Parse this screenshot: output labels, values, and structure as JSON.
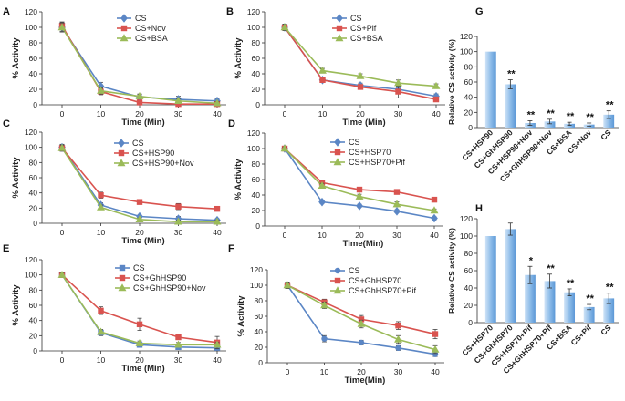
{
  "figure": {
    "description": "Citrate synthase (CS) thermal aggregation / activity assays"
  },
  "chart_data": [
    {
      "panel": "A",
      "type": "line",
      "xlabel": "Time (Min)",
      "ylabel": "% Activity",
      "x": [
        0,
        10,
        20,
        30,
        40
      ],
      "xticks": [
        "0",
        "10",
        "20",
        "30",
        "40"
      ],
      "ylim": [
        0,
        120
      ],
      "yticks": [
        "0",
        "20",
        "40",
        "60",
        "80",
        "100",
        "120"
      ],
      "series": [
        {
          "name": "CS",
          "color": "#5b86c5",
          "marker": "diamond",
          "values": [
            100,
            24,
            10,
            7,
            5
          ],
          "errors": [
            6,
            5,
            3,
            4,
            3
          ]
        },
        {
          "name": "CS+Nov",
          "color": "#d9534f",
          "marker": "square",
          "values": [
            102,
            17,
            3,
            1,
            1
          ],
          "errors": [
            5,
            4,
            2,
            2,
            1
          ]
        },
        {
          "name": "CS+BSA",
          "color": "#9bbb59",
          "marker": "triangle",
          "values": [
            100,
            18,
            11,
            5,
            2
          ],
          "errors": [
            5,
            4,
            3,
            3,
            2
          ]
        }
      ]
    },
    {
      "panel": "B",
      "type": "line",
      "xlabel": "Time (Min)",
      "ylabel": "% Activity",
      "x": [
        0,
        10,
        20,
        30,
        40
      ],
      "xticks": [
        "0",
        "10",
        "20",
        "30",
        "40"
      ],
      "ylim": [
        0,
        120
      ],
      "yticks": [
        "0",
        "20",
        "40",
        "60",
        "80",
        "100",
        "120"
      ],
      "series": [
        {
          "name": "CS",
          "color": "#5b86c5",
          "marker": "diamond",
          "values": [
            100,
            32,
            25,
            20,
            11
          ],
          "errors": [
            4,
            3,
            3,
            4,
            3
          ]
        },
        {
          "name": "CS+Pif",
          "color": "#d9534f",
          "marker": "square",
          "values": [
            100,
            32,
            23,
            17,
            7
          ],
          "errors": [
            4,
            3,
            3,
            8,
            3
          ]
        },
        {
          "name": "CS+BSA",
          "color": "#9bbb59",
          "marker": "triangle",
          "values": [
            100,
            44,
            37,
            28,
            24
          ],
          "errors": [
            4,
            3,
            3,
            4,
            3
          ]
        }
      ]
    },
    {
      "panel": "C",
      "type": "line",
      "xlabel": "Time (Min)",
      "ylabel": "% Activity",
      "x": [
        0,
        10,
        20,
        30,
        40
      ],
      "xticks": [
        "0",
        "10",
        "20",
        "30",
        "40"
      ],
      "ylim": [
        0,
        120
      ],
      "yticks": [
        "0",
        "20",
        "40",
        "60",
        "80",
        "100",
        "120"
      ],
      "series": [
        {
          "name": "CS",
          "color": "#5b86c5",
          "marker": "diamond",
          "values": [
            100,
            24,
            9,
            6,
            4
          ],
          "errors": [
            4,
            3,
            2,
            3,
            2
          ]
        },
        {
          "name": "CS+HSP90",
          "color": "#d9534f",
          "marker": "square",
          "values": [
            99,
            37,
            28,
            22,
            19
          ],
          "errors": [
            4,
            4,
            3,
            4,
            3
          ]
        },
        {
          "name": "CS+HSP90+Nov",
          "color": "#9bbb59",
          "marker": "triangle",
          "values": [
            99,
            21,
            5,
            2,
            2
          ],
          "errors": [
            4,
            3,
            2,
            2,
            2
          ]
        }
      ]
    },
    {
      "panel": "D",
      "type": "line",
      "xlabel": "Time(Min)",
      "ylabel": "% Activity",
      "x": [
        0,
        10,
        20,
        30,
        40
      ],
      "xticks": [
        "0",
        "10",
        "20",
        "30",
        "40"
      ],
      "ylim": [
        0,
        120
      ],
      "yticks": [
        "0",
        "20",
        "40",
        "60",
        "80",
        "100",
        "120"
      ],
      "series": [
        {
          "name": "CS",
          "color": "#5b86c5",
          "marker": "diamond",
          "values": [
            100,
            31,
            26,
            19,
            10
          ],
          "errors": [
            2,
            2,
            2,
            2,
            2
          ]
        },
        {
          "name": "CS+HSP70",
          "color": "#d9534f",
          "marker": "square",
          "values": [
            100,
            56,
            47,
            44,
            34
          ],
          "errors": [
            2,
            3,
            3,
            3,
            3
          ]
        },
        {
          "name": "CS+HSP70+Pif",
          "color": "#9bbb59",
          "marker": "triangle",
          "values": [
            100,
            52,
            38,
            28,
            20
          ],
          "errors": [
            2,
            3,
            3,
            3,
            2
          ]
        }
      ]
    },
    {
      "panel": "E",
      "type": "line",
      "xlabel": "Time (Min)",
      "ylabel": "% Activity",
      "x": [
        0,
        10,
        20,
        30,
        40
      ],
      "xticks": [
        "0",
        "10",
        "20",
        "30",
        "40"
      ],
      "ylim": [
        0,
        120
      ],
      "yticks": [
        "0",
        "20",
        "40",
        "60",
        "80",
        "100",
        "120"
      ],
      "series": [
        {
          "name": "CS",
          "color": "#5b86c5",
          "marker": "square",
          "values": [
            100,
            24,
            8,
            5,
            4
          ],
          "errors": [
            3,
            4,
            3,
            3,
            3
          ]
        },
        {
          "name": "CS+GhHSP90",
          "color": "#d9534f",
          "marker": "square",
          "values": [
            100,
            53,
            35,
            18,
            11
          ],
          "errors": [
            3,
            5,
            8,
            3,
            8
          ]
        },
        {
          "name": "CS+GhHSP90+Nov",
          "color": "#9bbb59",
          "marker": "triangle",
          "values": [
            100,
            25,
            10,
            8,
            8
          ],
          "errors": [
            3,
            3,
            3,
            3,
            3
          ]
        }
      ]
    },
    {
      "panel": "F",
      "type": "line",
      "xlabel": "Time(Min)",
      "ylabel": "% Activity",
      "x": [
        0,
        10,
        20,
        30,
        40
      ],
      "xticks": [
        "0",
        "10",
        "20",
        "30",
        "40"
      ],
      "ylim": [
        0,
        120
      ],
      "yticks": [
        "0",
        "20",
        "40",
        "60",
        "80",
        "100",
        "120"
      ],
      "series": [
        {
          "name": "CS",
          "color": "#5b86c5",
          "marker": "circle",
          "values": [
            100,
            31,
            26,
            19,
            11
          ],
          "errors": [
            4,
            4,
            3,
            3,
            3
          ]
        },
        {
          "name": "CS+GhHSP70",
          "color": "#d9534f",
          "marker": "square",
          "values": [
            100,
            78,
            56,
            48,
            37
          ],
          "errors": [
            4,
            4,
            5,
            5,
            6
          ]
        },
        {
          "name": "CS+GhHSP70+Pif",
          "color": "#9bbb59",
          "marker": "triangle",
          "values": [
            100,
            74,
            50,
            30,
            17
          ],
          "errors": [
            4,
            4,
            5,
            5,
            5
          ]
        }
      ]
    },
    {
      "panel": "G",
      "type": "bar",
      "ylabel": "Relative CS activity (%)",
      "ylim": [
        0,
        120
      ],
      "yticks": [
        "0",
        "20",
        "40",
        "60",
        "80",
        "100",
        "120"
      ],
      "categories": [
        "CS+HSP90",
        "CS+GhHSP90",
        "CS+HSP90+Nov",
        "CS+GhHSP90+Nov",
        "CS+BSA",
        "CS+Nov",
        "CS"
      ],
      "values": [
        100,
        57,
        6,
        8,
        5,
        4,
        17
      ],
      "errors": [
        0,
        6,
        3,
        3,
        2,
        2,
        5
      ],
      "significance": [
        "",
        "**",
        "**",
        "**",
        "**",
        "**",
        "**"
      ]
    },
    {
      "panel": "H",
      "type": "bar",
      "ylabel": "Relative CS activity (%)",
      "ylim": [
        0,
        120
      ],
      "yticks": [
        "0",
        "20",
        "40",
        "60",
        "80",
        "100",
        "120"
      ],
      "categories": [
        "CS+HSP70",
        "CS+GhHSP70",
        "CS+HSP70+Pif",
        "CS+GhHSP70+Pif",
        "CS+BSA",
        "CS+Pif",
        "CS"
      ],
      "values": [
        100,
        108,
        55,
        48,
        35,
        18,
        28
      ],
      "errors": [
        0,
        7,
        10,
        8,
        4,
        3,
        6
      ],
      "significance": [
        "",
        "",
        "*",
        "**",
        "**",
        "**",
        "**"
      ]
    }
  ]
}
